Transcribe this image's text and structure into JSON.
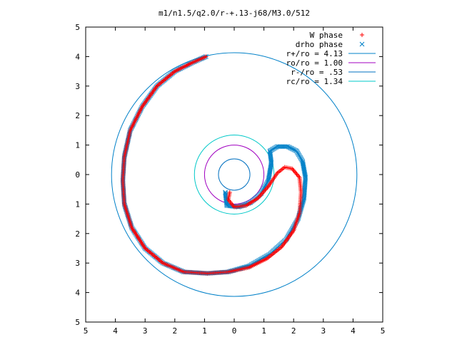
{
  "chart_data": {
    "type": "scatter",
    "title": "m1/n1.5/q2.0/r-+.13-j68/M3.0/512",
    "xlabel": "",
    "ylabel": "",
    "xlim": [
      -5,
      5
    ],
    "ylim": [
      -5,
      5
    ],
    "x_tick_labels": [
      "5",
      "4",
      "3",
      "2",
      "1",
      "0",
      "1",
      "2",
      "3",
      "4",
      "5"
    ],
    "y_tick_labels": [
      "5",
      "4",
      "3",
      "2",
      "1",
      "0",
      "1",
      "2",
      "3",
      "4",
      "5"
    ],
    "grid": false,
    "legend_position": "top-right",
    "series": [
      {
        "name": "W phase",
        "kind": "points",
        "marker": "plus",
        "color": "#ff0000",
        "points": [
          [
            -0.95,
            4.0
          ],
          [
            -1.4,
            3.8
          ],
          [
            -2.0,
            3.5
          ],
          [
            -2.6,
            3.0
          ],
          [
            -3.1,
            2.3
          ],
          [
            -3.5,
            1.5
          ],
          [
            -3.7,
            0.6
          ],
          [
            -3.75,
            -0.2
          ],
          [
            -3.7,
            -1.0
          ],
          [
            -3.45,
            -1.8
          ],
          [
            -3.0,
            -2.5
          ],
          [
            -2.4,
            -3.0
          ],
          [
            -1.7,
            -3.3
          ],
          [
            -0.9,
            -3.35
          ],
          [
            -0.2,
            -3.3
          ],
          [
            0.5,
            -3.15
          ],
          [
            1.1,
            -2.85
          ],
          [
            1.6,
            -2.45
          ],
          [
            2.0,
            -1.9
          ],
          [
            2.2,
            -1.3
          ],
          [
            2.25,
            -0.6
          ],
          [
            2.2,
            -0.1
          ],
          [
            1.95,
            0.2
          ],
          [
            1.7,
            0.25
          ],
          [
            1.45,
            0.05
          ],
          [
            1.15,
            -0.4
          ],
          [
            0.8,
            -0.8
          ],
          [
            0.4,
            -1.05
          ],
          [
            0.0,
            -1.1
          ],
          [
            -0.2,
            -0.85
          ],
          [
            -0.15,
            -0.6
          ]
        ]
      },
      {
        "name": "drho phase",
        "kind": "points",
        "marker": "cross",
        "color": "#0080c8",
        "points": [
          [
            -0.95,
            4.0
          ],
          [
            -1.4,
            3.8
          ],
          [
            -2.0,
            3.5
          ],
          [
            -2.6,
            3.0
          ],
          [
            -3.1,
            2.3
          ],
          [
            -3.5,
            1.5
          ],
          [
            -3.7,
            0.6
          ],
          [
            -3.75,
            -0.2
          ],
          [
            -3.7,
            -1.0
          ],
          [
            -3.45,
            -1.8
          ],
          [
            -3.0,
            -2.5
          ],
          [
            -2.4,
            -3.0
          ],
          [
            -1.7,
            -3.3
          ],
          [
            -0.9,
            -3.35
          ],
          [
            -0.2,
            -3.3
          ],
          [
            0.5,
            -3.1
          ],
          [
            1.2,
            -2.7
          ],
          [
            1.75,
            -2.2
          ],
          [
            2.15,
            -1.5
          ],
          [
            2.35,
            -0.8
          ],
          [
            2.4,
            -0.1
          ],
          [
            2.3,
            0.45
          ],
          [
            2.1,
            0.8
          ],
          [
            1.8,
            0.95
          ],
          [
            1.45,
            0.95
          ],
          [
            1.2,
            0.8
          ],
          [
            1.25,
            0.4
          ],
          [
            1.15,
            -0.2
          ],
          [
            0.9,
            -0.65
          ],
          [
            0.55,
            -0.95
          ],
          [
            0.15,
            -1.1
          ],
          [
            -0.25,
            -1.05
          ],
          [
            -0.3,
            -0.6
          ]
        ]
      },
      {
        "name": "r+/ro = 4.13",
        "kind": "circle",
        "radius": 4.13,
        "color": "#0080c8"
      },
      {
        "name": "ro/ro = 1.00",
        "kind": "circle",
        "radius": 1.0,
        "color": "#a000c0"
      },
      {
        "name": "r-/ro = .53",
        "kind": "circle",
        "radius": 0.53,
        "color": "#0070c0"
      },
      {
        "name": "rc/ro = 1.34",
        "kind": "circle",
        "radius": 1.34,
        "color": "#00c8c8"
      }
    ]
  }
}
